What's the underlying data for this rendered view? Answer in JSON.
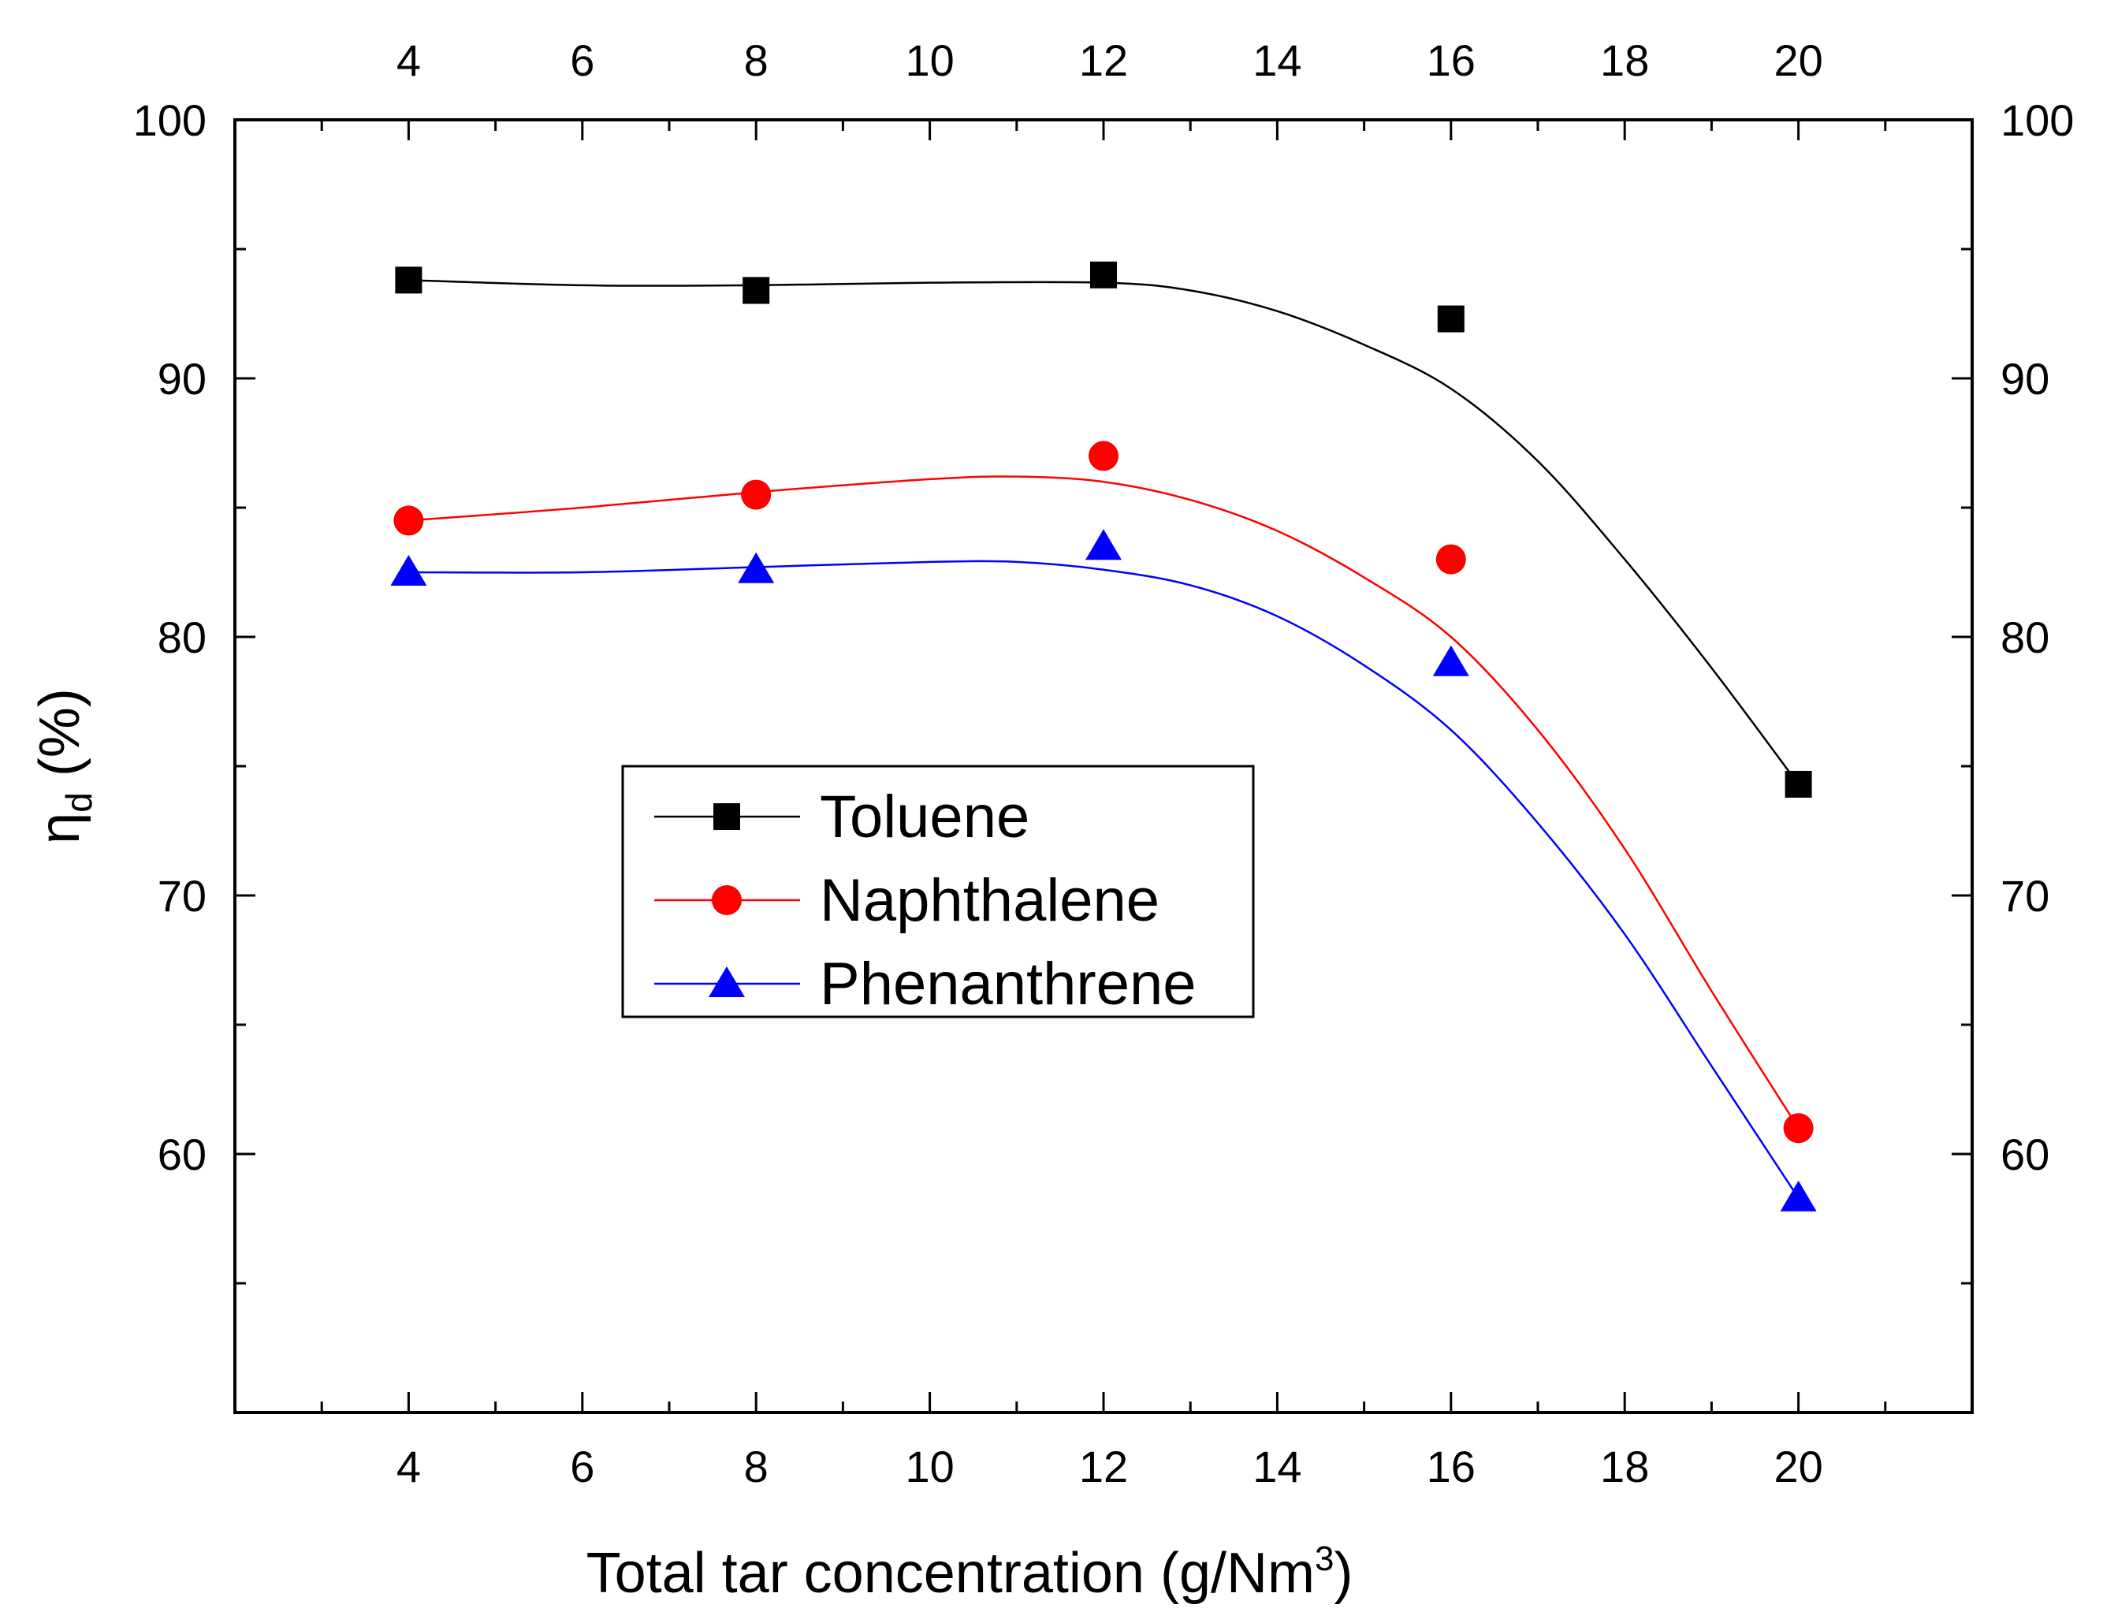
{
  "chart_data": {
    "type": "line",
    "title": "",
    "xlabel": "Total tar concentration (g/Nm",
    "xlabel_superscript": "3",
    "xlabel_suffix": ")",
    "ylabel_symbol": "η",
    "ylabel_subscript": "d",
    "ylabel_suffix": " (%)",
    "x": [
      4,
      8,
      12,
      16,
      20
    ],
    "xlim": [
      2,
      22
    ],
    "ylim": [
      50,
      100
    ],
    "x_ticks": [
      4,
      6,
      8,
      10,
      12,
      14,
      16,
      18,
      20
    ],
    "x_tick_labels": [
      "4",
      "6",
      "8",
      "10",
      "12",
      "14",
      "16",
      "18",
      "20"
    ],
    "y_ticks": [
      60,
      70,
      80,
      90,
      100
    ],
    "y_tick_labels": [
      "60",
      "70",
      "80",
      "90",
      "100"
    ],
    "legend_position": "center-left",
    "series": [
      {
        "name": "Toluene",
        "marker": "square",
        "color": "#000000",
        "values": [
          93.8,
          93.4,
          94.0,
          92.3,
          74.3
        ],
        "fit_curve": [
          [
            4,
            93.8
          ],
          [
            6,
            93.6
          ],
          [
            8,
            93.6
          ],
          [
            10,
            93.7
          ],
          [
            12,
            93.7
          ],
          [
            13,
            93.4
          ],
          [
            14,
            92.6
          ],
          [
            15,
            91.3
          ],
          [
            16,
            89.6
          ],
          [
            17,
            86.8
          ],
          [
            18,
            83.0
          ],
          [
            19,
            78.8
          ],
          [
            20,
            74.3
          ]
        ]
      },
      {
        "name": "Naphthalene",
        "marker": "circle",
        "color": "#ff0000",
        "values": [
          84.5,
          85.5,
          87.0,
          83.0,
          61.0
        ],
        "fit_curve": [
          [
            4,
            84.5
          ],
          [
            6,
            85.0
          ],
          [
            8,
            85.6
          ],
          [
            10,
            86.1
          ],
          [
            11,
            86.2
          ],
          [
            12,
            86.0
          ],
          [
            13,
            85.3
          ],
          [
            14,
            84.1
          ],
          [
            15,
            82.3
          ],
          [
            16,
            80.0
          ],
          [
            17,
            76.4
          ],
          [
            18,
            71.8
          ],
          [
            19,
            66.3
          ],
          [
            20,
            61.0
          ]
        ]
      },
      {
        "name": "Phenanthrene",
        "marker": "triangle",
        "color": "#0000ff",
        "values": [
          82.5,
          82.6,
          83.5,
          79.0,
          58.3
        ],
        "fit_curve": [
          [
            4,
            82.5
          ],
          [
            6,
            82.5
          ],
          [
            8,
            82.7
          ],
          [
            10,
            82.9
          ],
          [
            11,
            82.9
          ],
          [
            12,
            82.6
          ],
          [
            13,
            82.0
          ],
          [
            14,
            80.8
          ],
          [
            15,
            78.9
          ],
          [
            16,
            76.4
          ],
          [
            17,
            72.8
          ],
          [
            18,
            68.5
          ],
          [
            19,
            63.4
          ],
          [
            20,
            58.3
          ]
        ]
      }
    ]
  }
}
